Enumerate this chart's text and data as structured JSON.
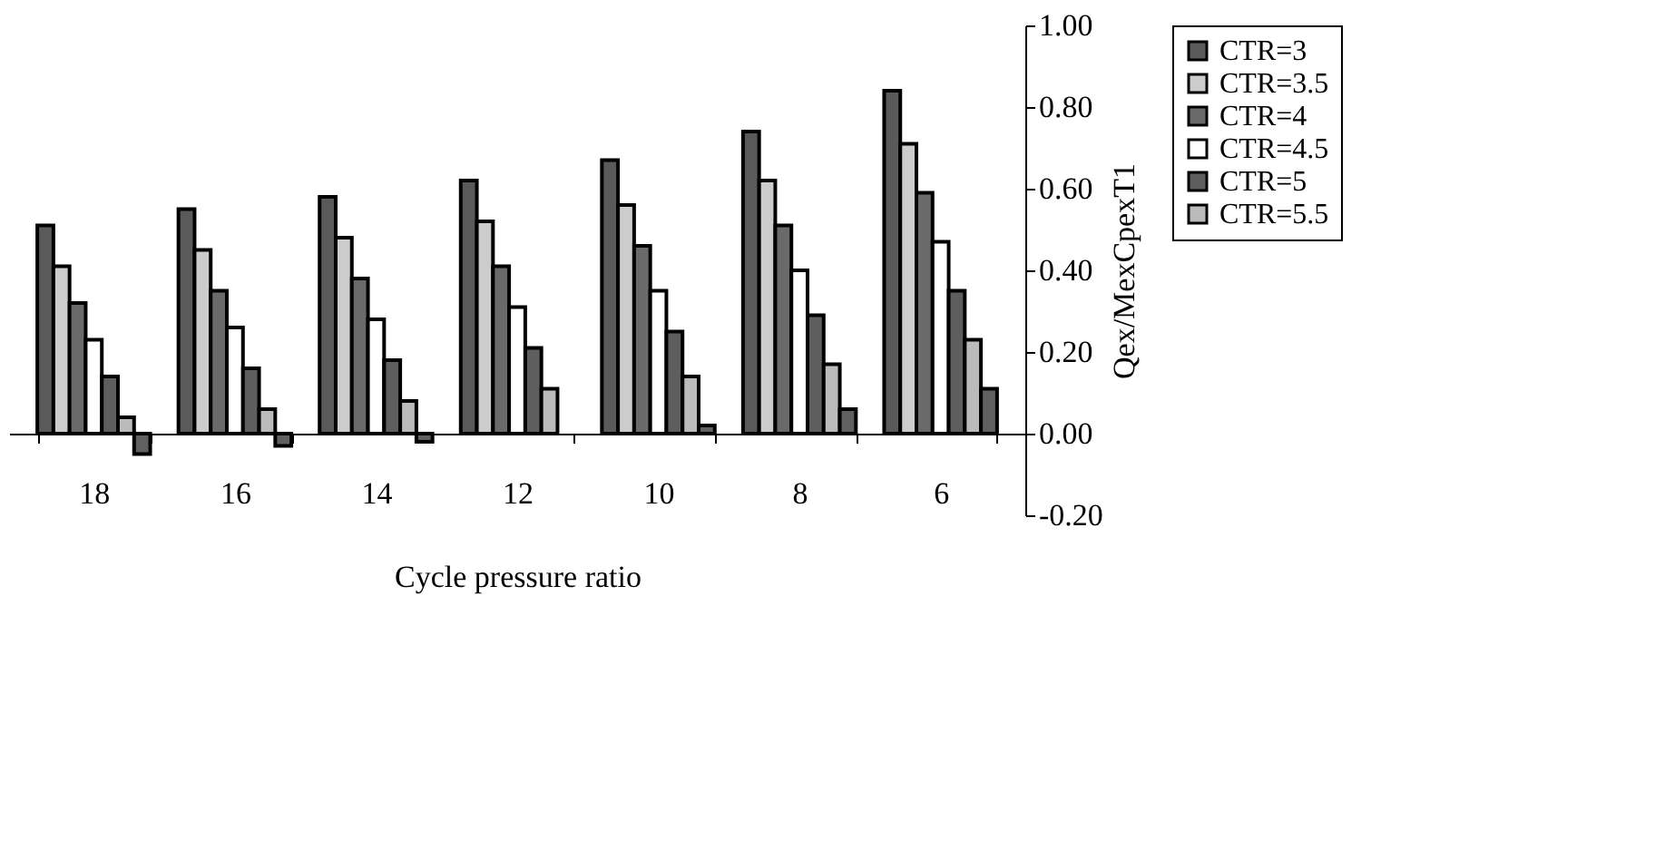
{
  "chart_data": {
    "type": "bar",
    "xlabel": "Cycle pressure ratio",
    "ylabel": "Qex/MexCpexT1",
    "categories": [
      "18",
      "16",
      "14",
      "12",
      "10",
      "8",
      "6"
    ],
    "series": [
      {
        "name": "CTR=3",
        "color": "#5a5a5a",
        "values": [
          0.51,
          0.55,
          0.58,
          0.62,
          0.67,
          0.74,
          0.84
        ]
      },
      {
        "name": "CTR=3.5",
        "color": "#cccccc",
        "values": [
          0.41,
          0.45,
          0.48,
          0.52,
          0.56,
          0.62,
          0.71
        ]
      },
      {
        "name": "CTR=4",
        "color": "#6a6a6a",
        "values": [
          0.32,
          0.35,
          0.38,
          0.41,
          0.46,
          0.51,
          0.59
        ]
      },
      {
        "name": "CTR=4.5",
        "color": "#ffffff",
        "values": [
          0.23,
          0.26,
          0.28,
          0.31,
          0.35,
          0.4,
          0.47
        ]
      },
      {
        "name": "CTR=5",
        "color": "#5e5e5e",
        "values": [
          0.14,
          0.16,
          0.18,
          0.21,
          0.25,
          0.29,
          0.35
        ]
      },
      {
        "name": "CTR=5.5",
        "color": "#bbbbbb",
        "values": [
          0.04,
          0.06,
          0.08,
          0.11,
          0.14,
          0.17,
          0.23
        ]
      },
      {
        "color": "#606060",
        "values": [
          -0.05,
          -0.03,
          -0.02,
          null,
          0.02,
          0.06,
          0.11
        ]
      }
    ],
    "ylim": [
      -0.2,
      1.0
    ],
    "yticks": [
      {
        "value": -0.2,
        "label": "-0.20"
      },
      {
        "value": 0,
        "label": "0.00"
      },
      {
        "value": 0.2,
        "label": "0.20"
      },
      {
        "value": 0.4,
        "label": "0.40"
      },
      {
        "value": 0.6,
        "label": "0.60"
      },
      {
        "value": 0.8,
        "label": "0.80"
      },
      {
        "value": 1.0,
        "label": "1.00"
      }
    ],
    "grid": false,
    "legend": "right"
  }
}
